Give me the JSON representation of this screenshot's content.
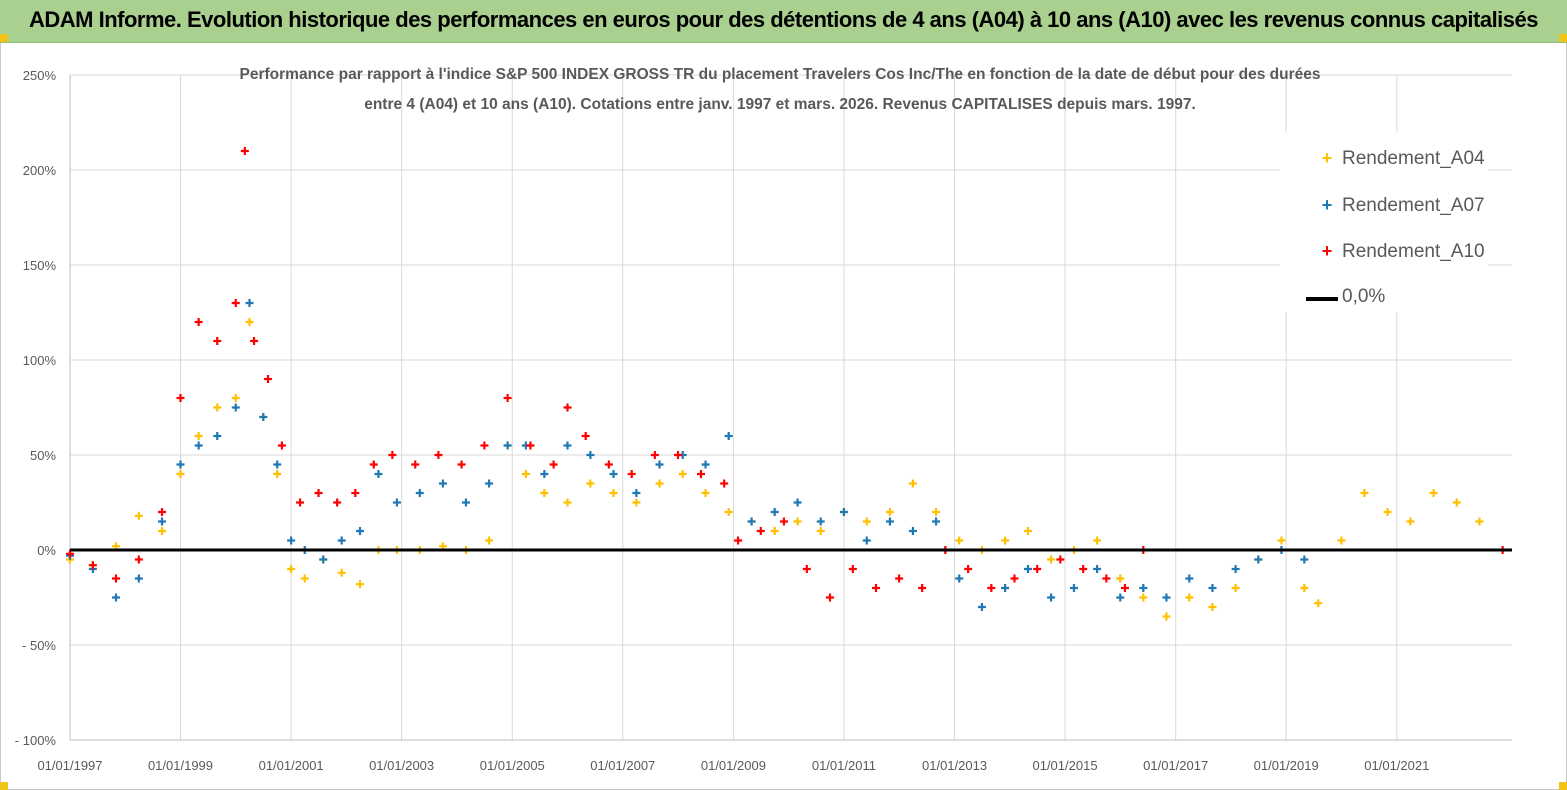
{
  "header": {
    "banner_title": "ADAM Informe. Evolution historique des performances en euros pour des détentions de 4 ans (A04) à 10 ans (A10) avec les revenus connus capitalisés"
  },
  "colors": {
    "banner_bg": "#a9d08e",
    "a04": "#ffc000",
    "a07": "#1f77b4",
    "a10": "#ff0000",
    "zero": "#000000",
    "grid": "#d9d9d9"
  },
  "legend": {
    "items": [
      {
        "label": "Rendement_A04",
        "marker": "+",
        "color": "#ffc000"
      },
      {
        "label": "Rendement_A07",
        "marker": "+",
        "color": "#1f77b4"
      },
      {
        "label": "Rendement_A10",
        "marker": "+",
        "color": "#ff0000"
      },
      {
        "label": "0,0%",
        "marker": "line",
        "color": "#000000"
      }
    ]
  },
  "chart_data": {
    "type": "scatter",
    "title_line1": "Performance par rapport à l'indice S&P 500 INDEX GROSS TR  du placement Travelers Cos Inc/The en fonction de la date de début pour des durées",
    "title_line2": "entre 4 (A04) et 10 ans (A10). Cotations entre janv. 1997 et mars. 2026. Revenus CAPITALISES depuis mars. 1997.",
    "x_range": [
      "1997-01-01",
      "2023-02-01"
    ],
    "ylim": [
      -100,
      250
    ],
    "y_ticks": [
      {
        "value": 250,
        "label": "250%"
      },
      {
        "value": 200,
        "label": "200%"
      },
      {
        "value": 150,
        "label": "150%"
      },
      {
        "value": 100,
        "label": "100%"
      },
      {
        "value": 50,
        "label": "50%"
      },
      {
        "value": 0,
        "label": "0%"
      },
      {
        "value": -50,
        "label": "- 50%"
      },
      {
        "value": -100,
        "label": "- 100%"
      }
    ],
    "x_ticks": [
      {
        "date": "1997-01-01",
        "label": "01/01/1997"
      },
      {
        "date": "1999-01-01",
        "label": "01/01/1999"
      },
      {
        "date": "2001-01-01",
        "label": "01/01/2001"
      },
      {
        "date": "2003-01-01",
        "label": "01/01/2003"
      },
      {
        "date": "2005-01-01",
        "label": "01/01/2005"
      },
      {
        "date": "2007-01-01",
        "label": "01/01/2007"
      },
      {
        "date": "2009-01-01",
        "label": "01/01/2009"
      },
      {
        "date": "2011-01-01",
        "label": "01/01/2011"
      },
      {
        "date": "2013-01-01",
        "label": "01/01/2013"
      },
      {
        "date": "2015-01-01",
        "label": "01/01/2015"
      },
      {
        "date": "2017-01-01",
        "label": "01/01/2017"
      },
      {
        "date": "2019-01-01",
        "label": "01/01/2019"
      },
      {
        "date": "2021-01-01",
        "label": "01/01/2021"
      }
    ],
    "grid": true,
    "legend_position": "top-right",
    "reference_line": {
      "name": "0,0%",
      "value": 0
    },
    "series": [
      {
        "name": "Rendement_A04",
        "color": "#ffc000",
        "points": [
          [
            "1997-01-01",
            -5
          ],
          [
            "1997-06-01",
            -8
          ],
          [
            "1997-11-01",
            2
          ],
          [
            "1998-04-01",
            18
          ],
          [
            "1998-09-01",
            10
          ],
          [
            "1999-01-01",
            40
          ],
          [
            "1999-05-01",
            60
          ],
          [
            "1999-09-01",
            75
          ],
          [
            "2000-01-01",
            80
          ],
          [
            "2000-04-01",
            120
          ],
          [
            "2000-07-01",
            70
          ],
          [
            "2000-10-01",
            40
          ],
          [
            "2001-01-01",
            -10
          ],
          [
            "2001-04-01",
            -15
          ],
          [
            "2001-08-01",
            -5
          ],
          [
            "2001-12-01",
            -12
          ],
          [
            "2002-04-01",
            -18
          ],
          [
            "2002-08-01",
            0
          ],
          [
            "2002-12-01",
            0
          ],
          [
            "2003-05-01",
            0
          ],
          [
            "2003-10-01",
            2
          ],
          [
            "2004-03-01",
            0
          ],
          [
            "2004-08-01",
            5
          ],
          [
            "2004-12-01",
            55
          ],
          [
            "2005-04-01",
            40
          ],
          [
            "2005-08-01",
            30
          ],
          [
            "2006-01-01",
            25
          ],
          [
            "2006-06-01",
            35
          ],
          [
            "2006-11-01",
            30
          ],
          [
            "2007-04-01",
            25
          ],
          [
            "2007-09-01",
            35
          ],
          [
            "2008-02-01",
            40
          ],
          [
            "2008-07-01",
            30
          ],
          [
            "2008-12-01",
            20
          ],
          [
            "2009-05-01",
            15
          ],
          [
            "2009-10-01",
            10
          ],
          [
            "2010-03-01",
            15
          ],
          [
            "2010-08-01",
            10
          ],
          [
            "2011-01-01",
            20
          ],
          [
            "2011-06-01",
            15
          ],
          [
            "2011-11-01",
            20
          ],
          [
            "2012-04-01",
            35
          ],
          [
            "2012-09-01",
            20
          ],
          [
            "2013-02-01",
            5
          ],
          [
            "2013-07-01",
            0
          ],
          [
            "2013-12-01",
            5
          ],
          [
            "2014-05-01",
            10
          ],
          [
            "2014-10-01",
            -5
          ],
          [
            "2015-03-01",
            0
          ],
          [
            "2015-08-01",
            5
          ],
          [
            "2016-01-01",
            -15
          ],
          [
            "2016-06-01",
            -25
          ],
          [
            "2016-11-01",
            -35
          ],
          [
            "2017-04-01",
            -25
          ],
          [
            "2017-09-01",
            -30
          ],
          [
            "2018-02-01",
            -20
          ],
          [
            "2018-07-01",
            -5
          ],
          [
            "2018-12-01",
            5
          ],
          [
            "2019-05-01",
            -20
          ],
          [
            "2019-08-01",
            -28
          ],
          [
            "2020-01-01",
            5
          ],
          [
            "2020-06-01",
            30
          ],
          [
            "2020-11-01",
            20
          ],
          [
            "2021-04-01",
            15
          ],
          [
            "2021-09-01",
            30
          ],
          [
            "2022-02-01",
            25
          ],
          [
            "2022-07-01",
            15
          ]
        ]
      },
      {
        "name": "Rendement_A07",
        "color": "#1f77b4",
        "points": [
          [
            "1997-01-01",
            -3
          ],
          [
            "1997-06-01",
            -10
          ],
          [
            "1997-11-01",
            -25
          ],
          [
            "1998-04-01",
            -15
          ],
          [
            "1998-09-01",
            15
          ],
          [
            "1999-01-01",
            45
          ],
          [
            "1999-05-01",
            55
          ],
          [
            "1999-09-01",
            60
          ],
          [
            "2000-01-01",
            75
          ],
          [
            "2000-04-01",
            130
          ],
          [
            "2000-07-01",
            70
          ],
          [
            "2000-10-01",
            45
          ],
          [
            "2001-01-01",
            5
          ],
          [
            "2001-04-01",
            0
          ],
          [
            "2001-08-01",
            -5
          ],
          [
            "2001-12-01",
            5
          ],
          [
            "2002-04-01",
            10
          ],
          [
            "2002-08-01",
            40
          ],
          [
            "2002-12-01",
            25
          ],
          [
            "2003-05-01",
            30
          ],
          [
            "2003-10-01",
            35
          ],
          [
            "2004-03-01",
            25
          ],
          [
            "2004-08-01",
            35
          ],
          [
            "2004-12-01",
            55
          ],
          [
            "2005-04-01",
            55
          ],
          [
            "2005-08-01",
            40
          ],
          [
            "2006-01-01",
            55
          ],
          [
            "2006-06-01",
            50
          ],
          [
            "2006-11-01",
            40
          ],
          [
            "2007-04-01",
            30
          ],
          [
            "2007-09-01",
            45
          ],
          [
            "2008-02-01",
            50
          ],
          [
            "2008-07-01",
            45
          ],
          [
            "2008-12-01",
            60
          ],
          [
            "2009-05-01",
            15
          ],
          [
            "2009-10-01",
            20
          ],
          [
            "2010-03-01",
            25
          ],
          [
            "2010-08-01",
            15
          ],
          [
            "2011-01-01",
            20
          ],
          [
            "2011-06-01",
            5
          ],
          [
            "2011-11-01",
            15
          ],
          [
            "2012-04-01",
            10
          ],
          [
            "2012-09-01",
            15
          ],
          [
            "2013-02-01",
            -15
          ],
          [
            "2013-07-01",
            -30
          ],
          [
            "2013-12-01",
            -20
          ],
          [
            "2014-05-01",
            -10
          ],
          [
            "2014-10-01",
            -25
          ],
          [
            "2015-03-01",
            -20
          ],
          [
            "2015-08-01",
            -10
          ],
          [
            "2016-01-01",
            -25
          ],
          [
            "2016-06-01",
            -20
          ],
          [
            "2016-11-01",
            -25
          ],
          [
            "2017-04-01",
            -15
          ],
          [
            "2017-09-01",
            -20
          ],
          [
            "2018-02-01",
            -10
          ],
          [
            "2018-07-01",
            -5
          ],
          [
            "2018-12-01",
            0
          ],
          [
            "2019-05-01",
            -5
          ]
        ]
      },
      {
        "name": "Rendement_A10",
        "color": "#ff0000",
        "points": [
          [
            "1997-01-01",
            -2
          ],
          [
            "1997-06-01",
            -8
          ],
          [
            "1997-11-01",
            -15
          ],
          [
            "1998-04-01",
            -5
          ],
          [
            "1998-09-01",
            20
          ],
          [
            "1999-01-01",
            80
          ],
          [
            "1999-05-01",
            120
          ],
          [
            "1999-09-01",
            110
          ],
          [
            "2000-01-01",
            130
          ],
          [
            "2000-03-01",
            210
          ],
          [
            "2000-05-01",
            110
          ],
          [
            "2000-08-01",
            90
          ],
          [
            "2000-11-01",
            55
          ],
          [
            "2001-03-01",
            25
          ],
          [
            "2001-07-01",
            30
          ],
          [
            "2001-11-01",
            25
          ],
          [
            "2002-03-01",
            30
          ],
          [
            "2002-07-01",
            45
          ],
          [
            "2002-11-01",
            50
          ],
          [
            "2003-04-01",
            45
          ],
          [
            "2003-09-01",
            50
          ],
          [
            "2004-02-01",
            45
          ],
          [
            "2004-07-01",
            55
          ],
          [
            "2004-12-01",
            80
          ],
          [
            "2005-05-01",
            55
          ],
          [
            "2005-10-01",
            45
          ],
          [
            "2006-01-01",
            75
          ],
          [
            "2006-05-01",
            60
          ],
          [
            "2006-10-01",
            45
          ],
          [
            "2007-03-01",
            40
          ],
          [
            "2007-08-01",
            50
          ],
          [
            "2008-01-01",
            50
          ],
          [
            "2008-06-01",
            40
          ],
          [
            "2008-11-01",
            35
          ],
          [
            "2009-02-01",
            5
          ],
          [
            "2009-07-01",
            10
          ],
          [
            "2009-12-01",
            15
          ],
          [
            "2010-05-01",
            -10
          ],
          [
            "2010-10-01",
            -25
          ],
          [
            "2011-03-01",
            -10
          ],
          [
            "2011-08-01",
            -20
          ],
          [
            "2012-01-01",
            -15
          ],
          [
            "2012-06-01",
            -20
          ],
          [
            "2012-11-01",
            0
          ],
          [
            "2013-04-01",
            -10
          ],
          [
            "2013-09-01",
            -20
          ],
          [
            "2014-02-01",
            -15
          ],
          [
            "2014-07-01",
            -10
          ],
          [
            "2014-12-01",
            -5
          ],
          [
            "2015-05-01",
            -10
          ],
          [
            "2015-10-01",
            -15
          ],
          [
            "2016-02-01",
            -20
          ],
          [
            "2016-06-01",
            0
          ],
          [
            "2022-12-01",
            0
          ]
        ]
      }
    ]
  }
}
